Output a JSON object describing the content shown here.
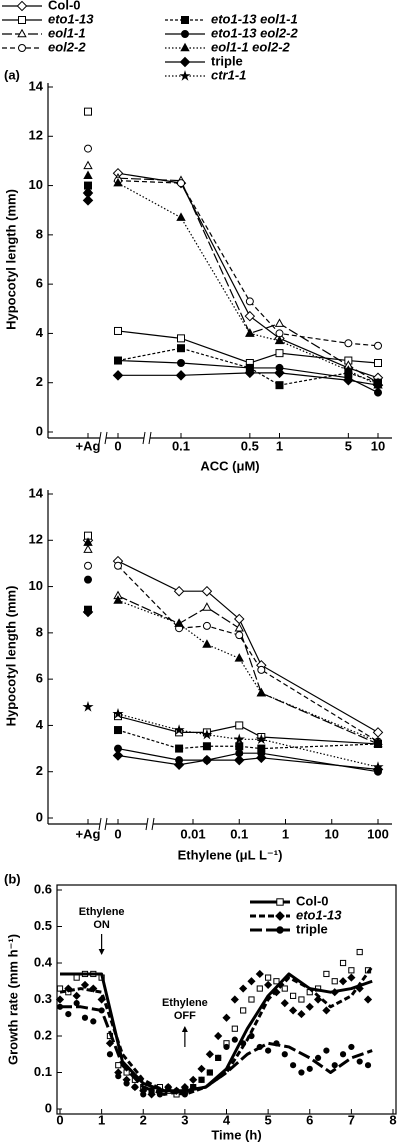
{
  "chart_data": [
    {
      "type": "line",
      "panel": "(a)",
      "xscale": "broken-log",
      "ylabel": "Hypocotyl length (mm)",
      "xlabel": "ACC (μM)",
      "x": [
        "+Ag",
        0,
        0.1,
        0.5,
        1,
        5,
        10
      ],
      "xticks": [
        "+Ag",
        0,
        0.1,
        0.5,
        1,
        5,
        10
      ],
      "ylim": [
        0,
        14
      ],
      "yticks": [
        0,
        2,
        4,
        6,
        8,
        10,
        12,
        14
      ],
      "color": "#000000",
      "series": [
        {
          "name": "Col-0",
          "marker": "diamond-open",
          "dash": "solid",
          "values": [
            9.7,
            10.5,
            10.1,
            4.7,
            3.8,
            2.6,
            2.2
          ]
        },
        {
          "name": "eto1-13",
          "marker": "square-open",
          "dash": "solid",
          "values": [
            13.0,
            4.1,
            3.8,
            2.8,
            3.2,
            2.9,
            2.8
          ]
        },
        {
          "name": "eol1-1",
          "marker": "triangle-open",
          "dash": "long-dash",
          "values": [
            10.8,
            10.3,
            10.2,
            4.0,
            4.4,
            2.7,
            2.0
          ]
        },
        {
          "name": "eol2-2",
          "marker": "circle-open",
          "dash": "dash",
          "values": [
            11.5,
            10.2,
            10.1,
            5.3,
            4.0,
            3.6,
            3.5
          ]
        },
        {
          "name": "eto1-13 eol1-1",
          "marker": "square-filled",
          "dash": "short-dash",
          "values": [
            10.0,
            2.9,
            3.4,
            2.6,
            1.9,
            2.4,
            2.0
          ]
        },
        {
          "name": "eto1-13 eol2-2",
          "marker": "circle-filled",
          "dash": "solid",
          "values": [
            9.7,
            2.9,
            2.8,
            2.6,
            2.6,
            2.2,
            1.6
          ]
        },
        {
          "name": "eol1-1 eol2-2",
          "marker": "triangle-filled",
          "dash": "dotted",
          "values": [
            10.4,
            10.1,
            8.7,
            4.0,
            3.7,
            2.5,
            1.9
          ]
        },
        {
          "name": "triple",
          "marker": "diamond-filled",
          "dash": "solid",
          "values": [
            9.4,
            2.3,
            2.3,
            2.4,
            2.4,
            2.1,
            1.9
          ]
        }
      ]
    },
    {
      "type": "line",
      "xscale": "broken-log",
      "ylabel": "Hypocotyl length (mm)",
      "xlabel": "Ethylene (μL L⁻¹)",
      "x": [
        "+Ag",
        0,
        0.005,
        0.02,
        0.1,
        0.3,
        100
      ],
      "xticks": [
        "+Ag",
        0,
        0.01,
        0.1,
        1,
        10,
        100
      ],
      "ylim": [
        0,
        14
      ],
      "yticks": [
        0,
        2,
        4,
        6,
        8,
        10,
        12,
        14
      ],
      "color": "#000000",
      "series": [
        {
          "name": "Col-0",
          "italic": false,
          "marker": "diamond-open",
          "dash": "solid",
          "values": [
            12.0,
            11.1,
            9.8,
            9.8,
            8.6,
            6.6,
            3.7
          ]
        },
        {
          "name": "eto1-13",
          "italic": true,
          "marker": "square-open",
          "dash": "solid",
          "values": [
            12.2,
            4.4,
            3.7,
            3.7,
            4.0,
            3.5,
            3.2
          ]
        },
        {
          "name": "eol1-1",
          "italic": true,
          "marker": "triangle-open",
          "dash": "long-dash",
          "values": [
            11.6,
            9.6,
            8.4,
            9.1,
            8.2,
            5.4,
            3.2
          ]
        },
        {
          "name": "eol2-2",
          "italic": true,
          "marker": "circle-open",
          "dash": "dash",
          "values": [
            10.9,
            10.9,
            8.2,
            8.3,
            7.9,
            6.4,
            3.3
          ]
        },
        {
          "name": "eto1-13 eol1-1",
          "italic": true,
          "marker": "square-filled",
          "dash": "short-dash",
          "values": [
            9.0,
            3.8,
            3.0,
            3.1,
            3.1,
            3.0,
            3.2
          ]
        },
        {
          "name": "eto1-13 eol2-2",
          "italic": true,
          "marker": "circle-filled",
          "dash": "solid",
          "values": [
            10.3,
            3.0,
            2.5,
            2.5,
            2.8,
            2.8,
            2.0
          ]
        },
        {
          "name": "eol1-1 eol2-2",
          "italic": true,
          "marker": "triangle-filled",
          "dash": "dotted",
          "values": [
            11.9,
            9.4,
            8.4,
            7.5,
            6.9,
            5.4,
            3.3
          ]
        },
        {
          "name": "triple",
          "italic": false,
          "marker": "diamond-filled",
          "dash": "solid",
          "values": [
            8.9,
            2.7,
            2.3,
            2.5,
            2.5,
            2.6,
            2.1
          ]
        },
        {
          "name": "ctr1-1",
          "italic": true,
          "marker": "star-filled",
          "dash": "dotted",
          "values": [
            4.8,
            4.5,
            3.8,
            3.6,
            3.4,
            3.4,
            2.2
          ]
        }
      ]
    },
    {
      "type": "scatter",
      "panel": "(b)",
      "ylabel": "Growth rate (mm h⁻¹)",
      "xlabel": "Time (h)",
      "xlim": [
        0,
        8
      ],
      "xticks": [
        0,
        1,
        2,
        3,
        4,
        5,
        6,
        7,
        8
      ],
      "ylim": [
        0,
        0.6
      ],
      "yticks": [
        0,
        0.1,
        0.2,
        0.3,
        0.4,
        0.5,
        0.6
      ],
      "color": "#000000",
      "x": [
        0,
        0.2,
        0.4,
        0.6,
        0.8,
        1,
        1.2,
        1.4,
        1.6,
        1.8,
        2,
        2.2,
        2.4,
        2.6,
        2.8,
        3,
        3.2,
        3.4,
        3.6,
        3.8,
        4,
        4.2,
        4.4,
        4.6,
        4.8,
        5,
        5.2,
        5.4,
        5.6,
        5.8,
        6,
        6.2,
        6.4,
        6.6,
        6.8,
        7,
        7.2,
        7.4
      ],
      "fit_x": [
        0,
        0.5,
        1,
        1.5,
        2,
        2.5,
        3,
        3.5,
        4,
        4.5,
        5,
        5.5,
        6,
        6.5,
        7,
        7.5
      ],
      "annotations": [
        {
          "lines": [
            "Ethylene",
            "ON"
          ],
          "x": 1,
          "arrow": "down"
        },
        {
          "lines": [
            "Ethylene",
            "OFF"
          ],
          "x": 3,
          "arrow": "up"
        }
      ],
      "series": [
        {
          "name": "Col-0",
          "italic": false,
          "marker": "square-open",
          "dash": "solid",
          "values": [
            0.33,
            0.32,
            0.36,
            0.37,
            0.37,
            0.36,
            0.2,
            0.12,
            0.1,
            0.08,
            0.06,
            0.05,
            0.06,
            0.05,
            0.04,
            0.05,
            0.06,
            0.08,
            0.1,
            0.14,
            0.18,
            0.22,
            0.27,
            0.3,
            0.33,
            0.36,
            0.35,
            0.33,
            0.31,
            0.3,
            0.32,
            0.33,
            0.37,
            0.35,
            0.4,
            0.38,
            0.43,
            0.38
          ],
          "fit": [
            0.37,
            0.37,
            0.37,
            0.13,
            0.07,
            0.05,
            0.05,
            0.06,
            0.11,
            0.22,
            0.31,
            0.37,
            0.33,
            0.32,
            0.33,
            0.35
          ]
        },
        {
          "name": "eto1-13",
          "italic": true,
          "marker": "diamond-filled",
          "dash": "dash",
          "values": [
            0.3,
            0.33,
            0.31,
            0.34,
            0.33,
            0.3,
            0.18,
            0.1,
            0.08,
            0.06,
            0.05,
            0.04,
            0.05,
            0.06,
            0.05,
            0.06,
            0.08,
            0.11,
            0.15,
            0.2,
            0.25,
            0.3,
            0.33,
            0.35,
            0.37,
            0.34,
            0.32,
            0.29,
            0.27,
            0.26,
            0.28,
            0.3,
            0.27,
            0.32,
            0.35,
            0.36,
            0.33,
            0.3
          ],
          "fit": [
            0.32,
            0.33,
            0.32,
            0.15,
            0.08,
            0.05,
            0.04,
            0.06,
            0.1,
            0.19,
            0.3,
            0.36,
            0.33,
            0.28,
            0.31,
            0.39
          ]
        },
        {
          "name": "triple",
          "italic": false,
          "marker": "circle-filled",
          "dash": "long-dash",
          "values": [
            0.28,
            0.26,
            0.29,
            0.25,
            0.24,
            0.27,
            0.15,
            0.09,
            0.07,
            0.06,
            0.04,
            0.05,
            0.04,
            0.06,
            0.05,
            0.04,
            0.06,
            0.08,
            0.1,
            0.14,
            0.17,
            0.19,
            0.18,
            0.2,
            0.17,
            0.16,
            0.18,
            0.15,
            0.12,
            0.1,
            0.11,
            0.14,
            0.16,
            0.12,
            0.15,
            0.17,
            0.13,
            0.12
          ],
          "fit": [
            0.28,
            0.28,
            0.27,
            0.12,
            0.06,
            0.04,
            0.05,
            0.06,
            0.1,
            0.15,
            0.18,
            0.17,
            0.14,
            0.1,
            0.14,
            0.16
          ]
        }
      ]
    }
  ]
}
